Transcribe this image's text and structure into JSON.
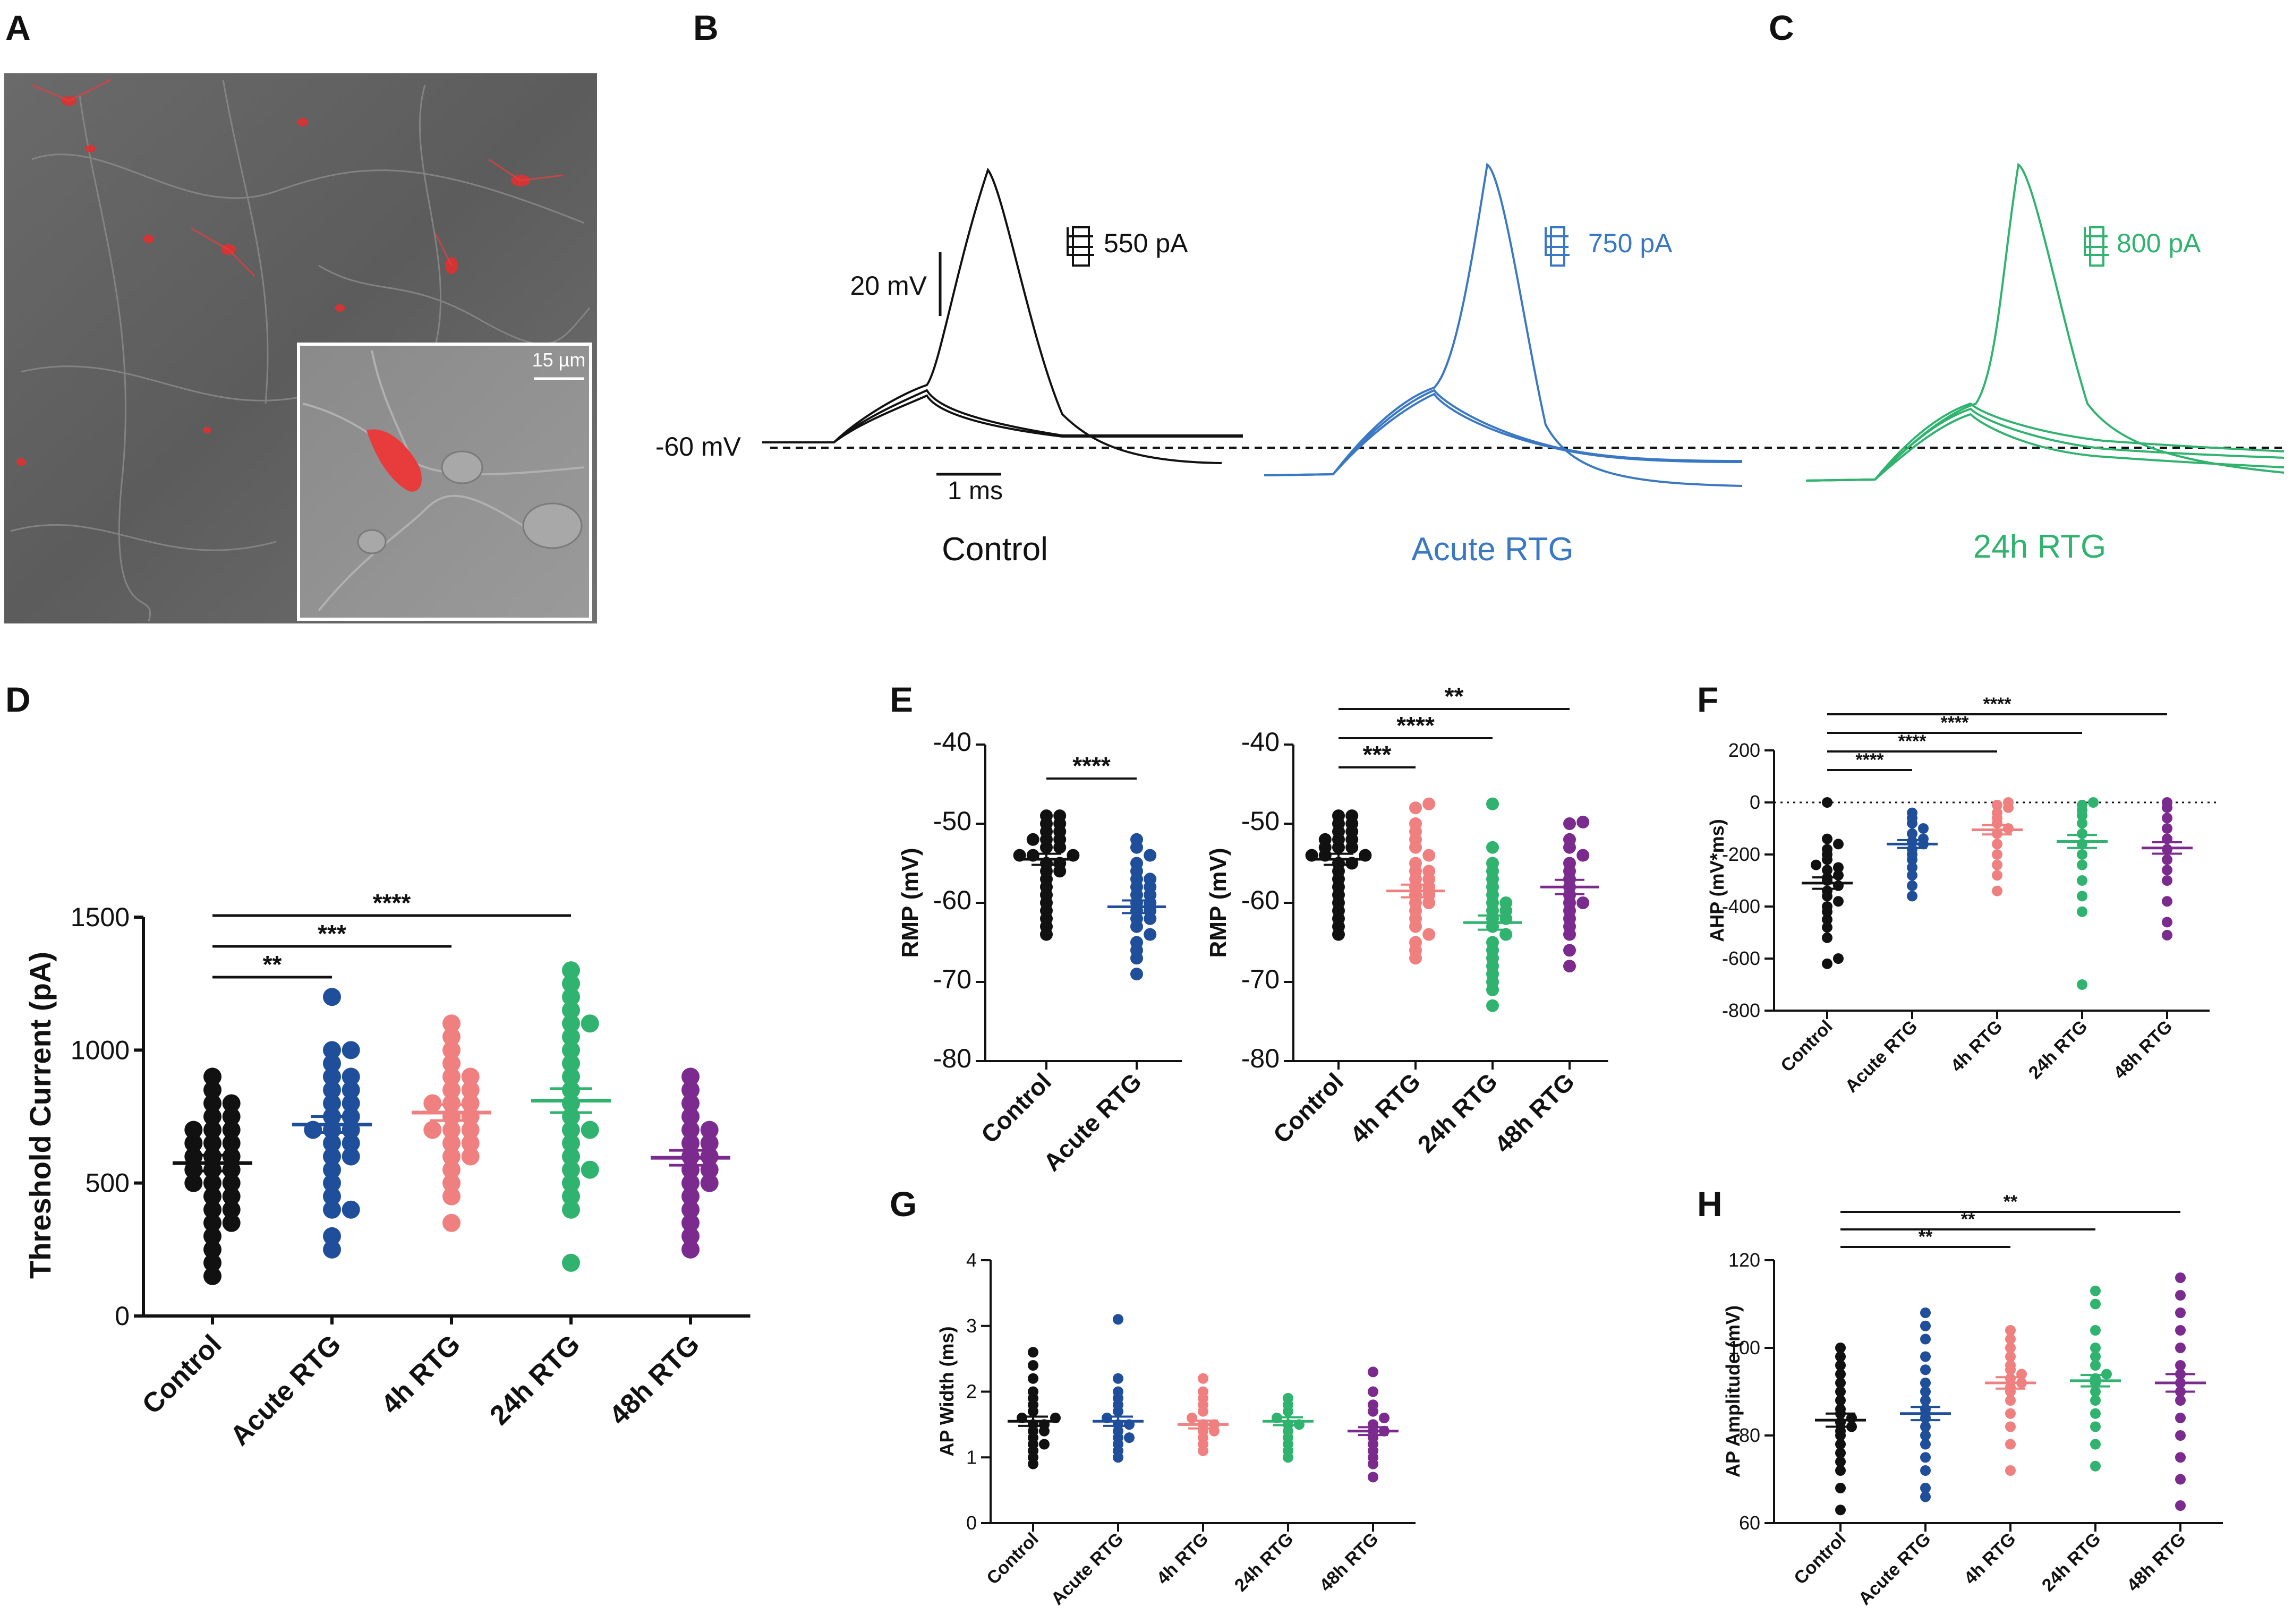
{
  "colors": {
    "control": "#111111",
    "acute": "#1f4e9b",
    "h4": "#f08080",
    "h24": "#2fb36e",
    "h48": "#7b2a8e",
    "trace_acute": "#3a78c4",
    "trace_24h": "#2fb36e"
  },
  "panel_A": {
    "label": "A",
    "scale_bar_text": "15 µm"
  },
  "traces": {
    "label_B": "B",
    "label_C": "C",
    "baseline": "-60 mV",
    "vscale": "20 mV",
    "tscale": "1 ms",
    "control": {
      "name": "Control",
      "step": "550 pA"
    },
    "acute": {
      "name": "Acute RTG",
      "step": "750 pA"
    },
    "h24": {
      "name": "24h RTG",
      "step": "800 pA"
    }
  },
  "chart_data": [
    {
      "id": "D",
      "type": "scatter",
      "label": "D",
      "ylabel": "Threshold Current (pA)",
      "ylim": [
        0,
        1500
      ],
      "yticks": [
        0,
        500,
        1000,
        1500
      ],
      "categories": [
        "Control",
        "Acute RTG",
        "4h RTG",
        "24h RTG",
        "48h RTG"
      ],
      "means": [
        575,
        720,
        765,
        810,
        595
      ],
      "sems": [
        30,
        30,
        30,
        45,
        28
      ],
      "points": [
        [
          150,
          200,
          250,
          300,
          350,
          350,
          400,
          400,
          450,
          450,
          500,
          500,
          500,
          550,
          550,
          550,
          600,
          600,
          600,
          650,
          650,
          650,
          700,
          700,
          700,
          750,
          750,
          800,
          800,
          850,
          900
        ],
        [
          250,
          300,
          400,
          400,
          450,
          500,
          550,
          600,
          600,
          650,
          650,
          700,
          700,
          700,
          750,
          750,
          800,
          800,
          850,
          850,
          900,
          900,
          950,
          1000,
          1000,
          1200
        ],
        [
          350,
          450,
          500,
          550,
          600,
          600,
          650,
          650,
          700,
          700,
          700,
          750,
          750,
          800,
          800,
          800,
          850,
          850,
          900,
          900,
          950,
          1000,
          1050,
          1100
        ],
        [
          200,
          400,
          450,
          500,
          550,
          550,
          600,
          650,
          700,
          700,
          750,
          800,
          850,
          900,
          950,
          1000,
          1050,
          1100,
          1100,
          1150,
          1200,
          1250,
          1300
        ],
        [
          250,
          300,
          350,
          400,
          450,
          500,
          500,
          550,
          550,
          600,
          600,
          650,
          650,
          700,
          700,
          750,
          800,
          850,
          900
        ]
      ],
      "sig": [
        {
          "from": 0,
          "to": 1,
          "text": "**"
        },
        {
          "from": 0,
          "to": 2,
          "text": "***"
        },
        {
          "from": 0,
          "to": 3,
          "text": "****"
        }
      ]
    },
    {
      "id": "E1",
      "type": "scatter",
      "label": "E",
      "ylabel": "RMP (mV)",
      "ylim": [
        -80,
        -40
      ],
      "yticks": [
        -80,
        -70,
        -60,
        -50,
        -40
      ],
      "categories": [
        "Control",
        "Acute RTG"
      ],
      "means": [
        -54.5,
        -60.5
      ],
      "sems": [
        0.7,
        0.8
      ],
      "points": [
        [
          -64,
          -63,
          -62,
          -61,
          -60,
          -59,
          -58,
          -57,
          -56,
          -56,
          -55,
          -55,
          -54,
          -54,
          -54,
          -53,
          -53,
          -52,
          -52,
          -52,
          -51,
          -51,
          -50,
          -50,
          -49,
          -49
        ],
        [
          -69,
          -67,
          -66,
          -65,
          -64,
          -63,
          -62,
          -62,
          -61,
          -61,
          -60,
          -60,
          -59,
          -59,
          -58,
          -58,
          -57,
          -57,
          -56,
          -55,
          -54,
          -53,
          -52
        ]
      ],
      "sig": [
        {
          "from": 0,
          "to": 1,
          "text": "****"
        }
      ]
    },
    {
      "id": "E2",
      "type": "scatter",
      "label": "",
      "ylabel": "RMP (mV)",
      "ylim": [
        -80,
        -40
      ],
      "yticks": [
        -80,
        -70,
        -60,
        -50,
        -40
      ],
      "categories": [
        "Control",
        "4h RTG",
        "24h RTG",
        "48h RTG"
      ],
      "means": [
        -54.5,
        -58.5,
        -62.5,
        -58.0
      ],
      "sems": [
        0.7,
        0.8,
        0.9,
        0.9
      ],
      "points": [
        [
          -64,
          -63,
          -62,
          -61,
          -60,
          -59,
          -58,
          -57,
          -56,
          -55,
          -55,
          -54,
          -54,
          -54,
          -53,
          -53,
          -53,
          -52,
          -52,
          -52,
          -51,
          -51,
          -50,
          -50,
          -49,
          -49
        ],
        [
          -67,
          -66,
          -65,
          -64,
          -63,
          -62,
          -61,
          -60,
          -60,
          -59,
          -59,
          -58,
          -58,
          -57,
          -57,
          -56,
          -56,
          -55,
          -54,
          -53,
          -52,
          -51,
          -50,
          -48,
          -47.5
        ],
        [
          -73,
          -71,
          -70,
          -69,
          -68,
          -67,
          -66,
          -65,
          -64,
          -63,
          -62,
          -62,
          -61,
          -61,
          -60,
          -60,
          -59,
          -58,
          -57,
          -56,
          -55,
          -53,
          -47.5
        ],
        [
          -68,
          -66,
          -64,
          -63,
          -62,
          -61,
          -60,
          -60,
          -59,
          -58,
          -57,
          -56,
          -55,
          -54,
          -53,
          -52,
          -50,
          -49.8
        ]
      ],
      "sig": [
        {
          "from": 0,
          "to": 1,
          "text": "***"
        },
        {
          "from": 0,
          "to": 2,
          "text": "****"
        },
        {
          "from": 0,
          "to": 3,
          "text": "**"
        }
      ]
    },
    {
      "id": "F",
      "type": "scatter",
      "label": "F",
      "ylabel": "AHP (mV*ms)",
      "ylim": [
        -800,
        200
      ],
      "yticks": [
        -800,
        -600,
        -400,
        -200,
        0,
        200
      ],
      "zero_line": true,
      "categories": [
        "Control",
        "Acute RTG",
        "4h RTG",
        "24h RTG",
        "48h RTG"
      ],
      "means": [
        -310,
        -160,
        -105,
        -150,
        -175
      ],
      "sems": [
        22,
        15,
        18,
        25,
        22
      ],
      "points": [
        [
          -620,
          -600,
          -520,
          -480,
          -450,
          -420,
          -400,
          -380,
          -360,
          -340,
          -320,
          -300,
          -290,
          -280,
          -260,
          -250,
          -240,
          -220,
          -200,
          -180,
          -160,
          -140,
          0
        ],
        [
          -360,
          -320,
          -280,
          -250,
          -220,
          -200,
          -180,
          -160,
          -150,
          -140,
          -120,
          -100,
          -80,
          -60,
          -40
        ],
        [
          -340,
          -280,
          -240,
          -200,
          -160,
          -120,
          -100,
          -80,
          -60,
          -40,
          -20,
          -10,
          0
        ],
        [
          -700,
          -420,
          -360,
          -300,
          -240,
          -200,
          -160,
          -120,
          -80,
          -50,
          -30,
          -10,
          0
        ],
        [
          -510,
          -460,
          -380,
          -300,
          -260,
          -220,
          -180,
          -140,
          -100,
          -60,
          -20,
          0
        ]
      ],
      "sig": [
        {
          "from": 0,
          "to": 1,
          "text": "****"
        },
        {
          "from": 0,
          "to": 2,
          "text": "****"
        },
        {
          "from": 0,
          "to": 3,
          "text": "****"
        },
        {
          "from": 0,
          "to": 4,
          "text": "****"
        }
      ]
    },
    {
      "id": "G",
      "type": "scatter",
      "label": "G",
      "ylabel": "AP Width (ms)",
      "ylim": [
        0,
        4
      ],
      "yticks": [
        0,
        1,
        2,
        3,
        4
      ],
      "categories": [
        "Control",
        "Acute RTG",
        "4h RTG",
        "24h RTG",
        "48h RTG"
      ],
      "means": [
        1.55,
        1.55,
        1.5,
        1.55,
        1.4
      ],
      "sems": [
        0.07,
        0.07,
        0.06,
        0.06,
        0.06
      ],
      "points": [
        [
          0.9,
          1.0,
          1.1,
          1.2,
          1.2,
          1.3,
          1.4,
          1.4,
          1.5,
          1.5,
          1.6,
          1.6,
          1.7,
          1.8,
          1.9,
          2.0,
          2.2,
          2.4,
          2.6
        ],
        [
          1.0,
          1.1,
          1.2,
          1.3,
          1.3,
          1.4,
          1.5,
          1.5,
          1.6,
          1.7,
          1.8,
          1.9,
          2.0,
          2.2,
          3.1
        ],
        [
          1.1,
          1.2,
          1.3,
          1.4,
          1.4,
          1.5,
          1.5,
          1.6,
          1.7,
          1.8,
          1.9,
          2.0,
          2.2
        ],
        [
          1.0,
          1.1,
          1.2,
          1.3,
          1.4,
          1.5,
          1.5,
          1.6,
          1.7,
          1.8,
          1.9
        ],
        [
          0.7,
          0.9,
          1.0,
          1.1,
          1.2,
          1.3,
          1.4,
          1.4,
          1.5,
          1.6,
          1.7,
          1.8,
          2.0,
          2.3
        ]
      ],
      "sig": []
    },
    {
      "id": "H",
      "type": "scatter",
      "label": "H",
      "ylabel": "AP Amplitude (mV)",
      "ylim": [
        60,
        120
      ],
      "yticks": [
        60,
        80,
        100,
        120
      ],
      "categories": [
        "Control",
        "Acute RTG",
        "4h RTG",
        "24h RTG",
        "48h RTG"
      ],
      "means": [
        83.5,
        85,
        92,
        92.5,
        92
      ],
      "sems": [
        1.5,
        1.5,
        1.3,
        1.3,
        2.0
      ],
      "points": [
        [
          63,
          68,
          72,
          74,
          76,
          78,
          80,
          81,
          82,
          83,
          84,
          85,
          86,
          88,
          90,
          92,
          94,
          96,
          98,
          100
        ],
        [
          66,
          68,
          72,
          75,
          78,
          80,
          82,
          84,
          85,
          86,
          88,
          90,
          92,
          95,
          98,
          102,
          105,
          108
        ],
        [
          72,
          78,
          82,
          85,
          88,
          90,
          91,
          92,
          93,
          94,
          95,
          96,
          98,
          100,
          102,
          104
        ],
        [
          73,
          78,
          82,
          85,
          88,
          90,
          92,
          93,
          94,
          96,
          98,
          100,
          104,
          110,
          113
        ],
        [
          64,
          70,
          75,
          80,
          84,
          88,
          90,
          92,
          94,
          96,
          100,
          104,
          108,
          112,
          116
        ]
      ],
      "sig": [
        {
          "from": 0,
          "to": 2,
          "text": "**"
        },
        {
          "from": 0,
          "to": 3,
          "text": "**"
        },
        {
          "from": 0,
          "to": 4,
          "text": "**"
        }
      ]
    }
  ]
}
